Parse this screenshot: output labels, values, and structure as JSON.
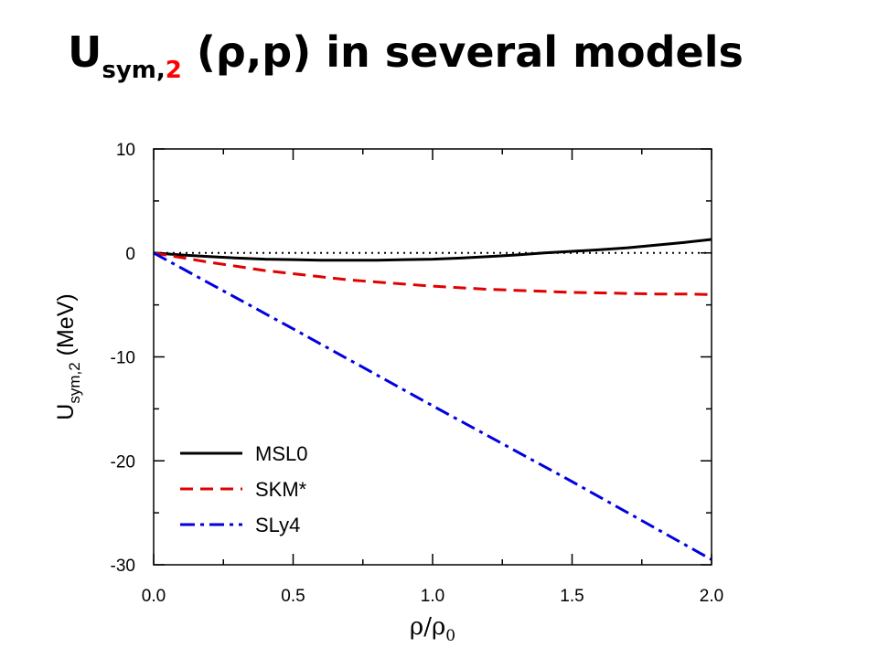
{
  "slide": {
    "title_main": "U",
    "title_sub": "sym,",
    "title_sub_highlight": "2",
    "title_rest": " (ρ,p) in several models"
  },
  "colors": {
    "highlight": "#ff0000",
    "msl0": "#000000",
    "skm": "#e00000",
    "sly4": "#0000e0"
  },
  "chart_data": {
    "type": "line",
    "xlabel_main": "ρ/ρ",
    "xlabel_sub": "0",
    "ylabel_main": "U",
    "ylabel_sub": "sym,2",
    "ylabel_unit": " (MeV)",
    "xlim": [
      0.0,
      2.0
    ],
    "ylim": [
      -30,
      10
    ],
    "xticks": [
      "0.0",
      "0.5",
      "1.0",
      "1.5",
      "2.0"
    ],
    "yticks": [
      "10",
      "0",
      "-10",
      "-20",
      "-30"
    ],
    "legend_position": "bottom-left",
    "zero_line": true,
    "series": [
      {
        "name": "MSL0",
        "style": "solid",
        "color": "#000000",
        "x": [
          0.0,
          0.1,
          0.2,
          0.3,
          0.4,
          0.5,
          0.6,
          0.7,
          0.8,
          0.9,
          1.0,
          1.1,
          1.2,
          1.3,
          1.4,
          1.5,
          1.6,
          1.7,
          1.8,
          1.9,
          2.0
        ],
        "y": [
          0.0,
          -0.2,
          -0.35,
          -0.5,
          -0.6,
          -0.65,
          -0.7,
          -0.7,
          -0.7,
          -0.65,
          -0.6,
          -0.5,
          -0.35,
          -0.2,
          0.0,
          0.15,
          0.3,
          0.5,
          0.75,
          1.0,
          1.3
        ]
      },
      {
        "name": "SKM*",
        "style": "dashed",
        "color": "#e00000",
        "x": [
          0.0,
          0.1,
          0.2,
          0.3,
          0.4,
          0.5,
          0.6,
          0.7,
          0.8,
          0.9,
          1.0,
          1.1,
          1.2,
          1.3,
          1.4,
          1.5,
          1.6,
          1.7,
          1.8,
          1.9,
          2.0
        ],
        "y": [
          0.0,
          -0.45,
          -0.9,
          -1.3,
          -1.7,
          -2.0,
          -2.3,
          -2.6,
          -2.8,
          -3.0,
          -3.2,
          -3.35,
          -3.5,
          -3.6,
          -3.7,
          -3.8,
          -3.85,
          -3.9,
          -3.95,
          -3.95,
          -4.0
        ]
      },
      {
        "name": "SLy4",
        "style": "dashdot",
        "color": "#0000e0",
        "x": [
          0.0,
          0.5,
          1.0,
          1.5,
          2.0
        ],
        "y": [
          0.0,
          -7.3,
          -14.7,
          -22.0,
          -29.5
        ]
      }
    ]
  }
}
